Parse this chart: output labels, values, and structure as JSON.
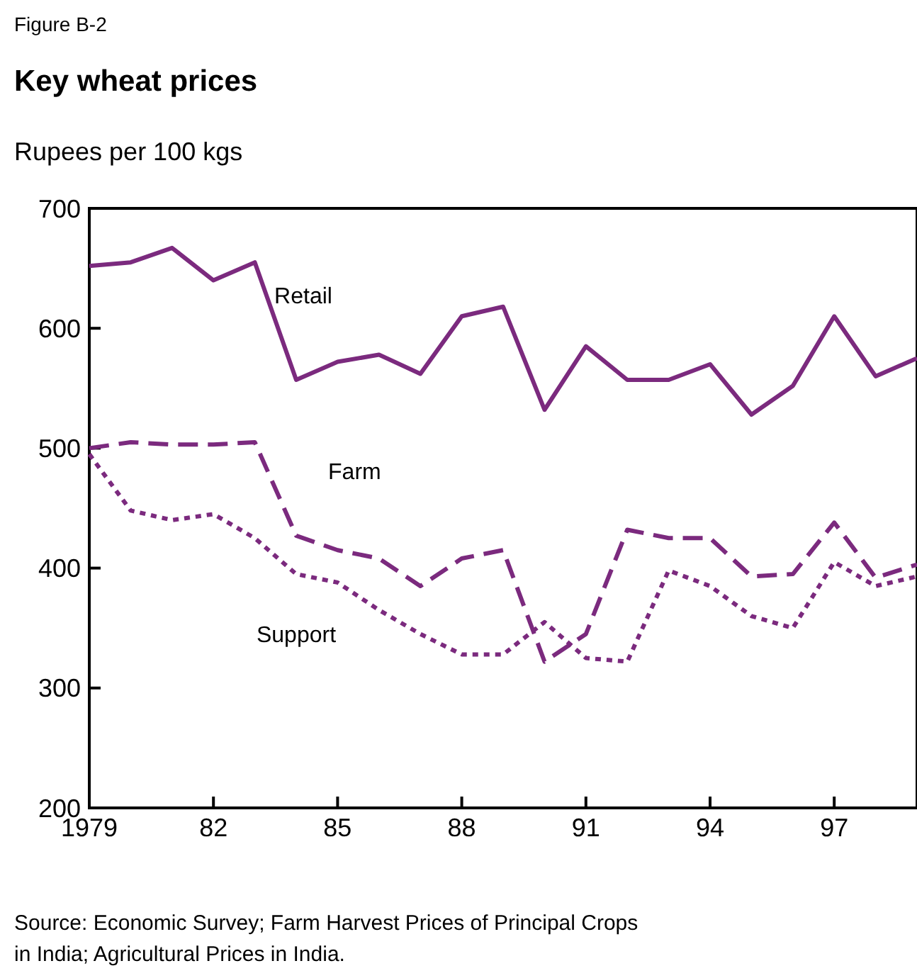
{
  "chart_data": {
    "type": "line",
    "title": "Key wheat prices",
    "ylabel": "Rupees per 100 kgs",
    "annotations": [
      "Figure B-2",
      "Source: Economic Survey; Farm Harvest Prices of Principal Crops in India; Agricultural Prices in India."
    ],
    "x": [
      1979,
      1980,
      1981,
      1982,
      1983,
      1984,
      1985,
      1986,
      1987,
      1988,
      1989,
      1990,
      1991,
      1992,
      1993,
      1994,
      1995,
      1996,
      1997,
      1998,
      1999
    ],
    "series": [
      {
        "name": "Retail",
        "color": "#7b2a7e",
        "line_style": "solid",
        "values": [
          652,
          655,
          667,
          640,
          655,
          557,
          572,
          578,
          562,
          610,
          618,
          532,
          585,
          557,
          557,
          570,
          528,
          552,
          610,
          560,
          575
        ]
      },
      {
        "name": "Farm",
        "color": "#7b2a7e",
        "line_style": "dashed",
        "values": [
          500,
          505,
          503,
          503,
          505,
          427,
          415,
          408,
          385,
          408,
          415,
          322,
          345,
          432,
          425,
          425,
          393,
          395,
          438,
          392,
          403
        ]
      },
      {
        "name": "Support",
        "color": "#7b2a7e",
        "line_style": "dotted",
        "values": [
          495,
          448,
          440,
          445,
          425,
          395,
          388,
          365,
          345,
          328,
          328,
          355,
          325,
          322,
          398,
          385,
          360,
          350,
          405,
          385,
          393
        ]
      }
    ],
    "xlim": [
      1979,
      1999
    ],
    "xticks": [
      1979,
      {
        "value": 1982,
        "label": "82"
      },
      {
        "value": 1985,
        "label": "85"
      },
      {
        "value": 1988,
        "label": "88"
      },
      {
        "value": 1991,
        "label": "91"
      },
      {
        "value": 1994,
        "label": "94"
      },
      {
        "value": 1997,
        "label": "97"
      }
    ],
    "ylim": [
      200,
      700
    ],
    "yticks": [
      200,
      300,
      400,
      500,
      600,
      700
    ],
    "grid": false,
    "legend": false,
    "marker": "none"
  }
}
